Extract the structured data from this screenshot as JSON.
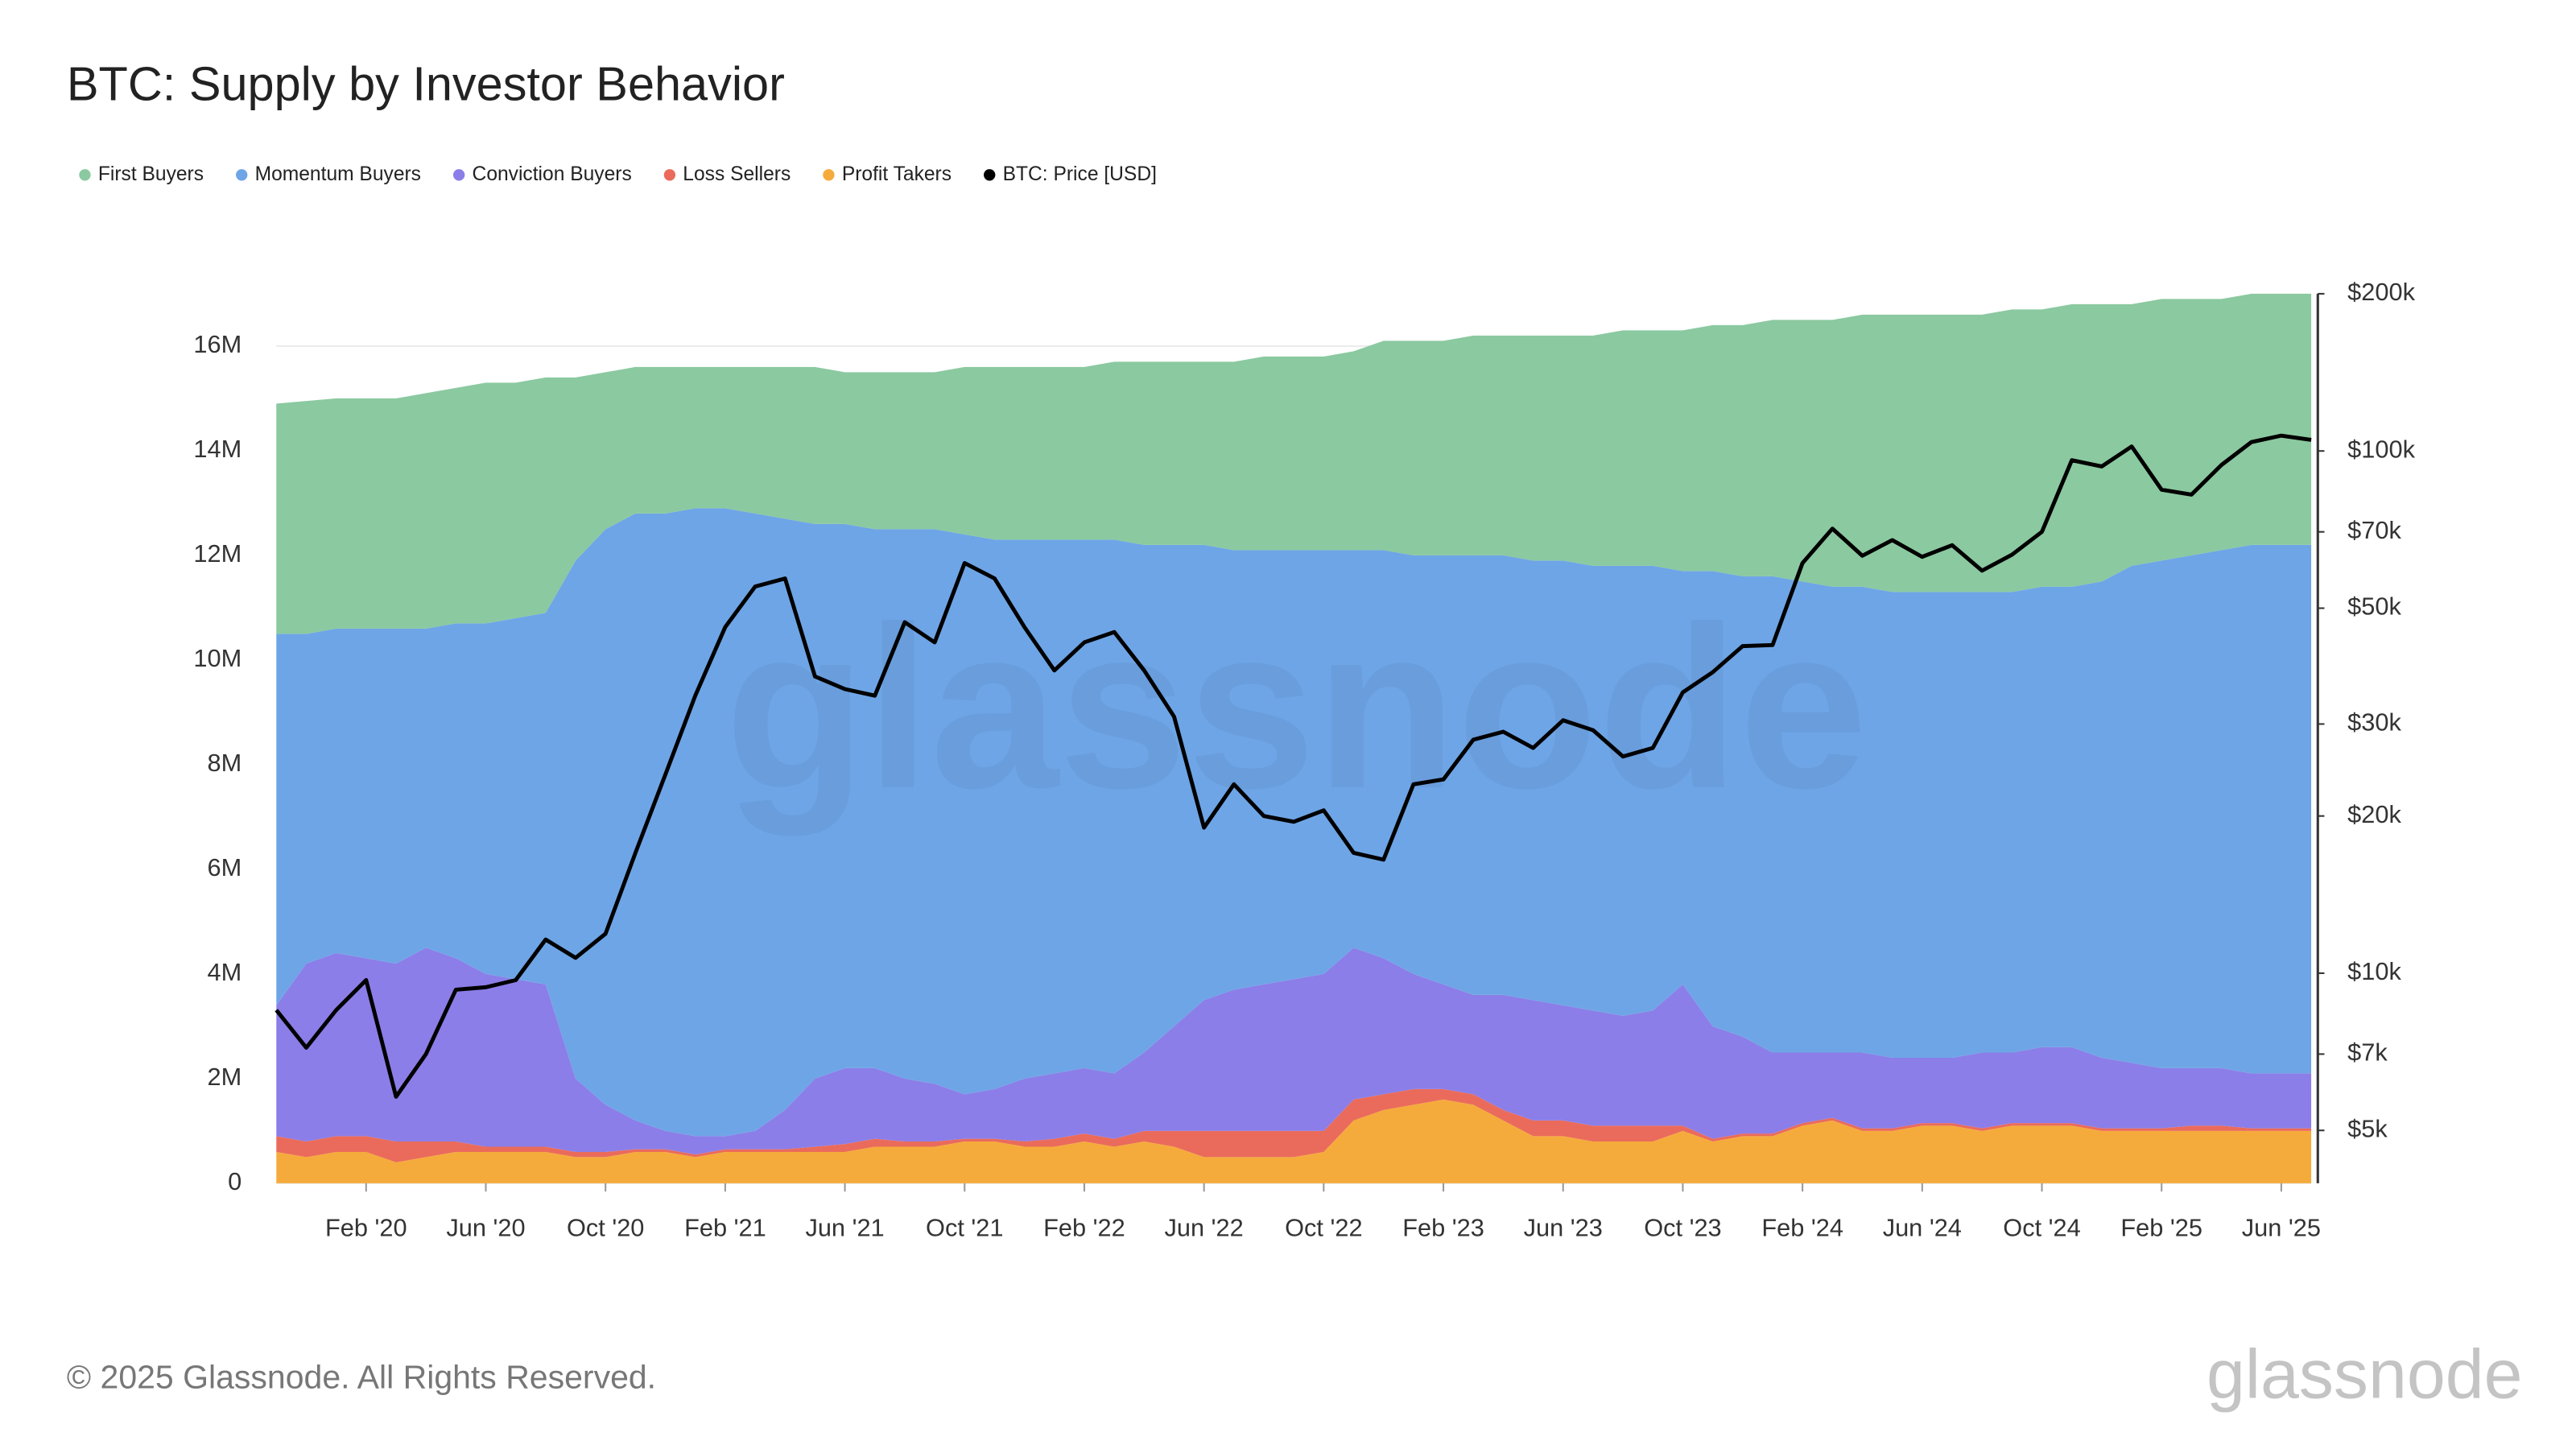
{
  "chart_data": {
    "type": "stacked-area",
    "title": "BTC: Supply by Investor Behavior",
    "watermark": "glassnode",
    "stacked": true,
    "grid": true,
    "y2log": true,
    "legend": "top-left",
    "x": [
      "2019-11",
      "2019-12",
      "2020-01",
      "2020-02",
      "2020-03",
      "2020-04",
      "2020-05",
      "2020-06",
      "2020-07",
      "2020-08",
      "2020-09",
      "2020-10",
      "2020-11",
      "2020-12",
      "2021-01",
      "2021-02",
      "2021-03",
      "2021-04",
      "2021-05",
      "2021-06",
      "2021-07",
      "2021-08",
      "2021-09",
      "2021-10",
      "2021-11",
      "2021-12",
      "2022-01",
      "2022-02",
      "2022-03",
      "2022-04",
      "2022-05",
      "2022-06",
      "2022-07",
      "2022-08",
      "2022-09",
      "2022-10",
      "2022-11",
      "2022-12",
      "2023-01",
      "2023-02",
      "2023-03",
      "2023-04",
      "2023-05",
      "2023-06",
      "2023-07",
      "2023-08",
      "2023-09",
      "2023-10",
      "2023-11",
      "2023-12",
      "2024-01",
      "2024-02",
      "2024-03",
      "2024-04",
      "2024-05",
      "2024-06",
      "2024-07",
      "2024-08",
      "2024-09",
      "2024-10",
      "2024-11",
      "2024-12",
      "2025-01",
      "2025-02",
      "2025-03",
      "2025-04",
      "2025-05",
      "2025-06",
      "2025-07"
    ],
    "xlim": [
      "2019-11",
      "2025-07"
    ],
    "xticks": [
      {
        "value": "2020-02",
        "label": "Feb '20"
      },
      {
        "value": "2020-06",
        "label": "Jun '20"
      },
      {
        "value": "2020-10",
        "label": "Oct '20"
      },
      {
        "value": "2021-02",
        "label": "Feb '21"
      },
      {
        "value": "2021-06",
        "label": "Jun '21"
      },
      {
        "value": "2021-10",
        "label": "Oct '21"
      },
      {
        "value": "2022-02",
        "label": "Feb '22"
      },
      {
        "value": "2022-06",
        "label": "Jun '22"
      },
      {
        "value": "2022-10",
        "label": "Oct '22"
      },
      {
        "value": "2023-02",
        "label": "Feb '23"
      },
      {
        "value": "2023-06",
        "label": "Jun '23"
      },
      {
        "value": "2023-10",
        "label": "Oct '23"
      },
      {
        "value": "2024-02",
        "label": "Feb '24"
      },
      {
        "value": "2024-06",
        "label": "Jun '24"
      },
      {
        "value": "2024-10",
        "label": "Oct '24"
      },
      {
        "value": "2025-02",
        "label": "Feb '25"
      },
      {
        "value": "2025-06",
        "label": "Jun '25"
      }
    ],
    "ylim": [
      0,
      17000000
    ],
    "yticks": [
      0,
      {
        "value": 2000000,
        "label": "2M"
      },
      {
        "value": 4000000,
        "label": "4M"
      },
      {
        "value": 6000000,
        "label": "6M"
      },
      {
        "value": 8000000,
        "label": "8M"
      },
      {
        "value": 10000000,
        "label": "10M"
      },
      {
        "value": 12000000,
        "label": "12M"
      },
      {
        "value": 14000000,
        "label": "14M"
      },
      {
        "value": 16000000,
        "label": "16M"
      }
    ],
    "y2lim": [
      3960,
      200000
    ],
    "y2ticks": [
      {
        "value": 5000,
        "label": "$5k"
      },
      {
        "value": 7000,
        "label": "$7k"
      },
      {
        "value": 10000,
        "label": "$10k"
      },
      {
        "value": 20000,
        "label": "$20k"
      },
      {
        "value": 30000,
        "label": "$30k"
      },
      {
        "value": 50000,
        "label": "$50k"
      },
      {
        "value": 70000,
        "label": "$70k"
      },
      {
        "value": 100000,
        "label": "$100k"
      },
      {
        "value": 200000,
        "label": "$200k"
      }
    ],
    "series": [
      {
        "name": "First Buyers",
        "color": "#8bc9a0",
        "values": [
          4400000,
          4450000,
          4400000,
          4400000,
          4400000,
          4500000,
          4500000,
          4600000,
          4500000,
          4500000,
          3500000,
          3000000,
          2800000,
          2800000,
          2700000,
          2700000,
          2800000,
          2900000,
          3000000,
          2900000,
          3000000,
          3000000,
          3000000,
          3200000,
          3300000,
          3300000,
          3300000,
          3300000,
          3400000,
          3500000,
          3500000,
          3500000,
          3600000,
          3700000,
          3700000,
          3700000,
          3800000,
          4000000,
          4100000,
          4100000,
          4200000,
          4200000,
          4300000,
          4300000,
          4400000,
          4500000,
          4500000,
          4600000,
          4700000,
          4800000,
          4900000,
          5000000,
          5100000,
          5200000,
          5300000,
          5300000,
          5300000,
          5300000,
          5400000,
          5300000,
          5400000,
          5300000,
          5000000,
          5000000,
          4900000,
          4800000,
          4800000,
          4800000,
          4800000
        ]
      },
      {
        "name": "Momentum Buyers",
        "color": "#6ea5e6",
        "values": [
          7100000,
          6300000,
          6200000,
          6300000,
          6400000,
          6100000,
          6400000,
          6700000,
          6900000,
          7100000,
          9900000,
          11000000,
          11600000,
          11800000,
          12000000,
          12000000,
          11800000,
          11300000,
          10600000,
          10400000,
          10300000,
          10500000,
          10600000,
          10700000,
          10500000,
          10300000,
          10200000,
          10100000,
          10200000,
          9700000,
          9200000,
          8700000,
          8400000,
          8300000,
          8200000,
          8100000,
          7600000,
          7800000,
          8000000,
          8200000,
          8400000,
          8400000,
          8400000,
          8500000,
          8500000,
          8600000,
          8500000,
          7900000,
          8700000,
          8800000,
          9100000,
          9000000,
          8900000,
          8900000,
          8900000,
          8900000,
          8900000,
          8800000,
          8800000,
          8800000,
          8800000,
          9100000,
          9500000,
          9700000,
          9800000,
          9900000,
          10100000,
          10100000,
          10100000
        ]
      },
      {
        "name": "Conviction Buyers",
        "color": "#8b7ee8",
        "values": [
          2500000,
          3400000,
          3500000,
          3400000,
          3400000,
          3700000,
          3500000,
          3300000,
          3200000,
          3100000,
          1400000,
          900000,
          550000,
          350000,
          350000,
          250000,
          350000,
          750000,
          1300000,
          1450000,
          1350000,
          1200000,
          1100000,
          850000,
          950000,
          1200000,
          1250000,
          1250000,
          1250000,
          1500000,
          2000000,
          2500000,
          2700000,
          2800000,
          2900000,
          3000000,
          2900000,
          2600000,
          2200000,
          2000000,
          1900000,
          2200000,
          2300000,
          2200000,
          2200000,
          2100000,
          2200000,
          2700000,
          2150000,
          1850000,
          1550000,
          1350000,
          1250000,
          1450000,
          1350000,
          1250000,
          1250000,
          1450000,
          1350000,
          1450000,
          1450000,
          1350000,
          1250000,
          1150000,
          1100000,
          1100000,
          1050000,
          1050000,
          1050000
        ]
      },
      {
        "name": "Loss Sellers",
        "color": "#ea6b5b",
        "values": [
          300000,
          300000,
          300000,
          300000,
          400000,
          300000,
          200000,
          100000,
          100000,
          100000,
          100000,
          100000,
          50000,
          50000,
          50000,
          50000,
          50000,
          50000,
          100000,
          150000,
          150000,
          100000,
          100000,
          50000,
          50000,
          100000,
          150000,
          150000,
          150000,
          200000,
          300000,
          500000,
          500000,
          500000,
          500000,
          400000,
          400000,
          300000,
          300000,
          200000,
          200000,
          200000,
          300000,
          300000,
          300000,
          300000,
          300000,
          100000,
          50000,
          50000,
          50000,
          50000,
          50000,
          50000,
          50000,
          50000,
          50000,
          50000,
          50000,
          50000,
          50000,
          50000,
          50000,
          50000,
          100000,
          100000,
          50000,
          50000,
          50000
        ]
      },
      {
        "name": "Profit Takers",
        "color": "#f5ab3c",
        "values": [
          600000,
          500000,
          600000,
          600000,
          400000,
          500000,
          600000,
          600000,
          600000,
          600000,
          500000,
          500000,
          600000,
          600000,
          500000,
          600000,
          600000,
          600000,
          600000,
          600000,
          700000,
          700000,
          700000,
          800000,
          800000,
          700000,
          700000,
          800000,
          700000,
          800000,
          700000,
          500000,
          500000,
          500000,
          500000,
          600000,
          1200000,
          1400000,
          1500000,
          1600000,
          1500000,
          1200000,
          900000,
          900000,
          800000,
          800000,
          800000,
          1000000,
          800000,
          900000,
          900000,
          1100000,
          1200000,
          1000000,
          1000000,
          1100000,
          1100000,
          1000000,
          1100000,
          1100000,
          1100000,
          1000000,
          1000000,
          1000000,
          1000000,
          1000000,
          1000000,
          1000000,
          1000000
        ]
      },
      {
        "name": "BTC: Price [USD]",
        "color": "#000000",
        "axis": "y2",
        "type": "line",
        "values": [
          8500,
          7200,
          8500,
          9700,
          5800,
          7000,
          9300,
          9400,
          9700,
          11600,
          10700,
          11900,
          17000,
          24000,
          34000,
          46000,
          55000,
          57000,
          37000,
          35000,
          34000,
          47000,
          43000,
          61000,
          57000,
          46000,
          38000,
          43000,
          45000,
          38000,
          31000,
          19000,
          23000,
          20000,
          19500,
          20500,
          17000,
          16500,
          23000,
          23500,
          28000,
          29000,
          27000,
          30500,
          29200,
          26000,
          27000,
          34500,
          37700,
          42300,
          42500,
          61000,
          71000,
          63000,
          67500,
          62700,
          66000,
          59000,
          63300,
          70000,
          96000,
          93400,
          102000,
          84300,
          82500,
          94000,
          104000,
          107000,
          105000
        ]
      }
    ]
  },
  "footer": {
    "copyright": "© 2025 Glassnode. All Rights Reserved.",
    "logo": "glassnode"
  }
}
